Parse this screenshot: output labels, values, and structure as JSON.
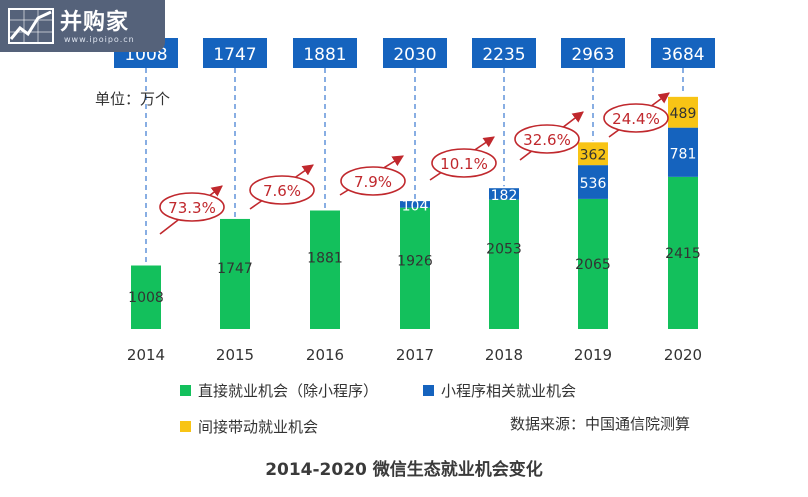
{
  "logo": {
    "title": "并购家",
    "subtitle": "www.ipoipo.cn"
  },
  "unit_label": "单位：万个",
  "footer": {
    "source": "数据来源：中国通信院测算",
    "caption": "2014-2020 微信生态就业机会变化"
  },
  "colors": {
    "direct": "#13c05c",
    "miniprogram": "#1563be",
    "indirect": "#f8c415",
    "total_box": "#1563be",
    "growth_oval": "#c0282d",
    "arrow": "#c0282d",
    "dash": "#3a78d0"
  },
  "chart_data": {
    "type": "bar",
    "stacked": true,
    "title": "2014-2020 微信生态就业机会变化",
    "unit": "单位：万个",
    "categories": [
      "2014",
      "2015",
      "2016",
      "2017",
      "2018",
      "2019",
      "2020"
    ],
    "series": [
      {
        "name": "直接就业机会（除小程序）",
        "color": "#13c05c",
        "values": [
          1008,
          1747,
          1881,
          1926,
          2053,
          2065,
          2415
        ]
      },
      {
        "name": "小程序相关就业机会",
        "color": "#1563be",
        "values": [
          0,
          0,
          0,
          104,
          182,
          536,
          781
        ]
      },
      {
        "name": "间接带动就业机会",
        "color": "#f8c415",
        "values": [
          0,
          0,
          0,
          0,
          0,
          362,
          489
        ]
      }
    ],
    "totals": [
      "1008",
      "1747",
      "1881",
      "2030",
      "2235",
      "2963",
      "3684"
    ],
    "growth": [
      "73.3%",
      "7.6%",
      "7.9%",
      "10.1%",
      "32.6%",
      "24.4%"
    ],
    "ylim": [
      0,
      3800
    ],
    "legend": "bottom"
  }
}
